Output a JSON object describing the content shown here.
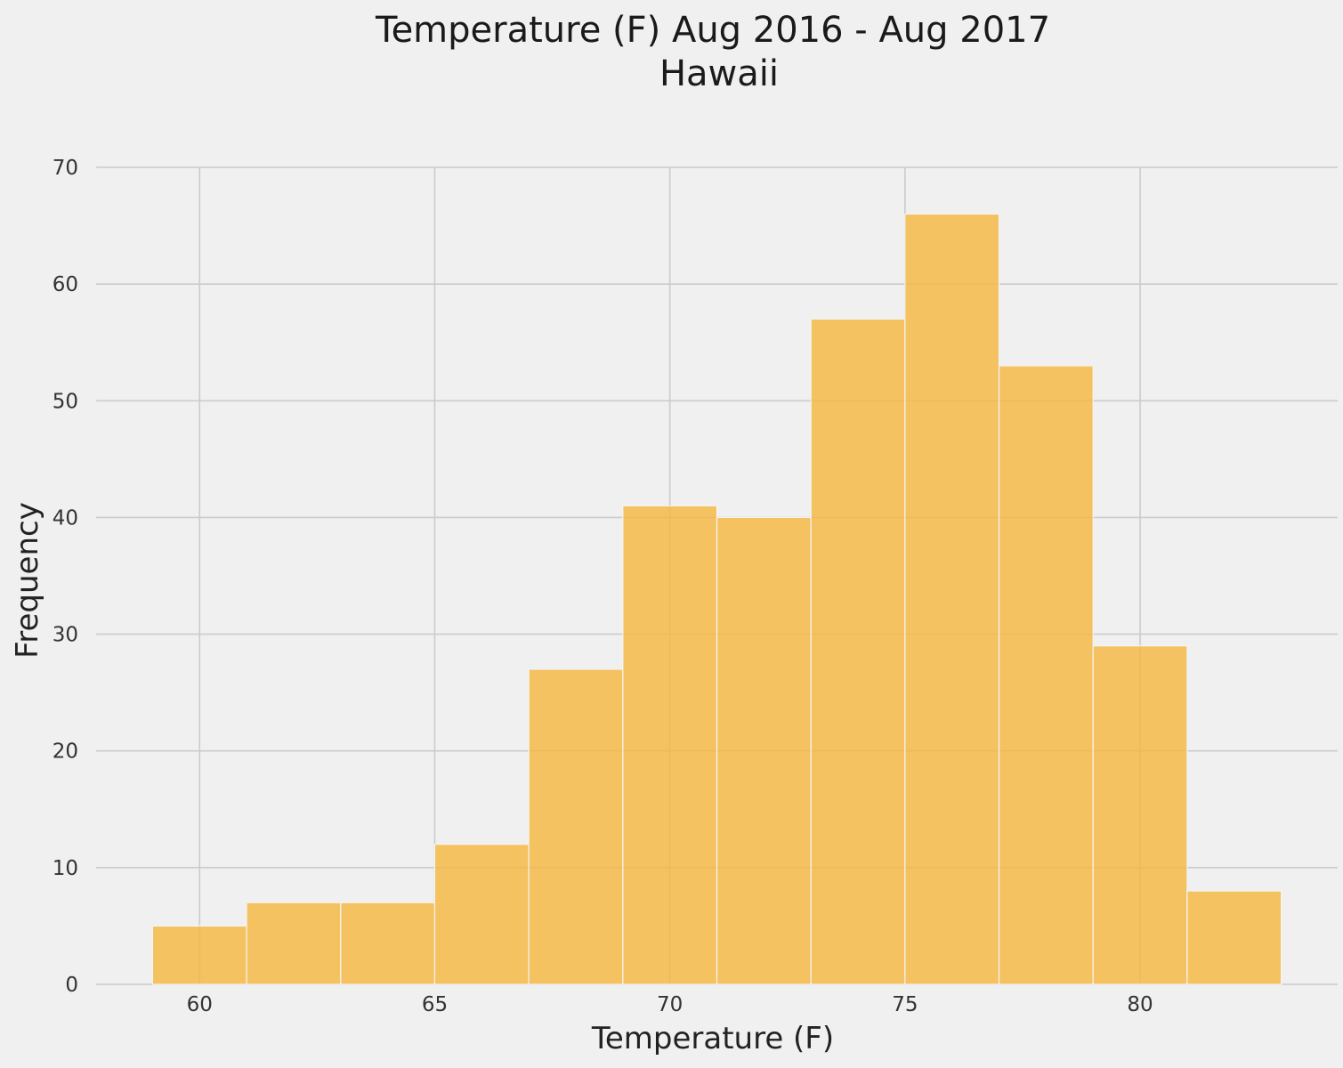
{
  "chart_data": {
    "type": "bar",
    "title": "Temperature (F) Aug 2016 - Aug 2017",
    "subtitle": "Hawaii",
    "xlabel": "Temperature (F)",
    "ylabel": "Frequency",
    "xlim": [
      57.8,
      84.2
    ],
    "ylim": [
      0,
      70
    ],
    "xticks": [
      60,
      65,
      70,
      75,
      80
    ],
    "yticks": [
      0,
      10,
      20,
      30,
      40,
      50,
      60,
      70
    ],
    "bins": [
      {
        "x0": 59,
        "x1": 61,
        "value": 5
      },
      {
        "x0": 61,
        "x1": 63,
        "value": 7
      },
      {
        "x0": 63,
        "x1": 65,
        "value": 7
      },
      {
        "x0": 65,
        "x1": 67,
        "value": 12
      },
      {
        "x0": 67,
        "x1": 69,
        "value": 27
      },
      {
        "x0": 69,
        "x1": 71,
        "value": 41
      },
      {
        "x0": 71,
        "x1": 73,
        "value": 40
      },
      {
        "x0": 73,
        "x1": 75,
        "value": 57
      },
      {
        "x0": 75,
        "x1": 77,
        "value": 66
      },
      {
        "x0": 77,
        "x1": 79,
        "value": 53
      },
      {
        "x0": 79,
        "x1": 81,
        "value": 29
      },
      {
        "x0": 81,
        "x1": 83,
        "value": 8
      }
    ],
    "grid": true,
    "legend": "none",
    "colors": {
      "bar": "#f6b63f",
      "bar_opacity": 0.8,
      "bar_edge": "#f5f5f5",
      "grid": "#cbcbcb",
      "background": "#f0f0f0"
    }
  }
}
